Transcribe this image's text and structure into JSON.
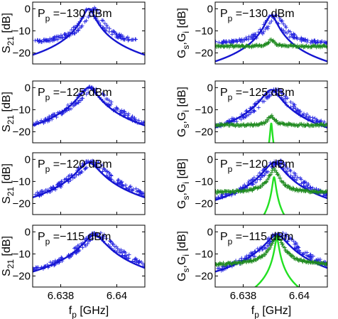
{
  "figure": {
    "left_ylabel": {
      "main": "S",
      "sub": "21",
      "unit": " [dB]"
    },
    "right_ylabel": {
      "main1": "G",
      "sub1": "s",
      "mid": ",G",
      "sub2": "i",
      "unit": " [dB]"
    },
    "xlabel": {
      "main": "f",
      "sub": "p",
      "unit": " [GHz]"
    }
  },
  "colors": {
    "data_blue": "#2020e0",
    "fit_blue": "#1515d0",
    "data_green": "#1f8a1f",
    "fit_green": "#22e022",
    "axis": "#000000"
  },
  "chart_data": [
    {
      "type": "scatter",
      "panel": "left",
      "annotation": {
        "base": "P",
        "sub": "p",
        "value": " =−130 dBm"
      },
      "xlim": [
        6.637,
        6.641
      ],
      "ylim": [
        -25,
        3
      ],
      "xticks": [
        6.638,
        6.64
      ],
      "xtick_labels": [
        "6.638",
        "6.64"
      ],
      "yticks": [
        0,
        -10,
        -20
      ],
      "ytick_labels": [
        "0",
        "−10",
        "−20"
      ],
      "series": [
        {
          "kind": "data",
          "marker": "+",
          "color": "blue",
          "center": 6.639,
          "peak": 0,
          "width": 0.00018,
          "background": -16,
          "noise": 0.6,
          "x_range": [
            6.637,
            6.6405
          ],
          "offset": [
            0.0002,
            0
          ]
        },
        {
          "kind": "fit",
          "color": "blue",
          "center": 6.639,
          "peak": 0,
          "width": 0.00018,
          "background": -40,
          "offset": [
            0,
            0
          ]
        }
      ]
    },
    {
      "type": "scatter",
      "panel": "right",
      "annotation": {
        "base": "P",
        "sub": "p",
        "value": " =−130 dBm"
      },
      "xlim": [
        6.637,
        6.641
      ],
      "ylim": [
        -25,
        3
      ],
      "xticks": [
        6.638,
        6.64
      ],
      "xtick_labels": [
        "6.638",
        "6.64"
      ],
      "yticks": [
        0,
        -10,
        -20
      ],
      "ytick_labels": [
        "0",
        "−10",
        "−20"
      ],
      "series": [
        {
          "kind": "data",
          "marker": "+",
          "color": "blue",
          "center": 6.639,
          "peak": -3,
          "width": 0.00018,
          "background": -16,
          "noise": 0.6,
          "x_range": [
            6.637,
            6.641
          ],
          "offset": [
            0.0002,
            0
          ]
        },
        {
          "kind": "fit",
          "color": "blue",
          "center": 6.639,
          "peak": -3,
          "width": 0.00018,
          "background": -40,
          "offset": [
            0,
            0
          ]
        },
        {
          "kind": "data",
          "marker": "+",
          "color": "green",
          "center": 6.639,
          "peak": -17,
          "width": 0.0001,
          "background": -17,
          "noise": 0.5,
          "x_range": [
            6.637,
            6.641
          ],
          "offset": [
            0,
            0
          ]
        }
      ]
    },
    {
      "type": "scatter",
      "panel": "left",
      "annotation": {
        "base": "P",
        "sub": "p",
        "value": " =−125 dBm"
      },
      "xlim": [
        6.637,
        6.641
      ],
      "ylim": [
        -25,
        3
      ],
      "xticks": [
        6.638,
        6.64
      ],
      "xtick_labels": [
        "6.638",
        "6.64"
      ],
      "yticks": [
        0,
        -10,
        -20
      ],
      "ytick_labels": [
        "0",
        "−10",
        "−20"
      ],
      "series": [
        {
          "kind": "data",
          "marker": "+",
          "color": "blue",
          "center": 6.639,
          "peak": 0,
          "width": 0.0003,
          "background": -40,
          "noise": 0.6,
          "x_range": [
            6.637,
            6.641
          ],
          "offset": [
            0.0002,
            0
          ]
        },
        {
          "kind": "fit",
          "color": "blue",
          "center": 6.639,
          "peak": 0,
          "width": 0.00028,
          "background": -40,
          "offset": [
            0,
            0
          ]
        }
      ]
    },
    {
      "type": "scatter",
      "panel": "right",
      "annotation": {
        "base": "P",
        "sub": "p",
        "value": " =−125 dBm"
      },
      "xlim": [
        6.637,
        6.641
      ],
      "ylim": [
        -25,
        3
      ],
      "xticks": [
        6.638,
        6.64
      ],
      "xtick_labels": [
        "6.638",
        "6.64"
      ],
      "yticks": [
        0,
        -10,
        -20
      ],
      "ytick_labels": [
        "0",
        "−10",
        "−20"
      ],
      "series": [
        {
          "kind": "data",
          "marker": "+",
          "color": "blue",
          "center": 6.639,
          "peak": -1,
          "width": 0.0003,
          "background": -40,
          "noise": 0.6,
          "x_range": [
            6.637,
            6.641
          ],
          "offset": [
            0.0002,
            0
          ]
        },
        {
          "kind": "fit",
          "color": "blue",
          "center": 6.639,
          "peak": -1,
          "width": 0.00028,
          "background": -40,
          "offset": [
            0,
            0
          ]
        },
        {
          "kind": "data",
          "marker": "+",
          "color": "green",
          "center": 6.639,
          "peak": -15,
          "width": 0.00012,
          "background": -17,
          "noise": 0.5,
          "x_range": [
            6.637,
            6.641
          ],
          "offset": [
            0,
            0
          ]
        },
        {
          "kind": "fit",
          "color": "green",
          "center": 6.639,
          "peak": -16,
          "width": 3e-05,
          "background": -40,
          "offset": [
            0,
            0
          ]
        }
      ]
    },
    {
      "type": "scatter",
      "panel": "left",
      "annotation": {
        "base": "P",
        "sub": "p",
        "value": " =−120 dBm"
      },
      "xlim": [
        6.637,
        6.641
      ],
      "ylim": [
        -25,
        3
      ],
      "xticks": [
        6.638,
        6.64
      ],
      "xtick_labels": [
        "6.638",
        "6.64"
      ],
      "yticks": [
        0,
        -10,
        -20
      ],
      "ytick_labels": [
        "0",
        "−10",
        "−20"
      ],
      "series": [
        {
          "kind": "data",
          "marker": "+",
          "color": "blue",
          "center": 6.639,
          "peak": -1,
          "width": 0.00035,
          "background": -40,
          "noise": 0.6,
          "x_range": [
            6.637,
            6.641
          ],
          "offset": [
            0.0002,
            0
          ]
        },
        {
          "kind": "fit",
          "color": "blue",
          "center": 6.639,
          "peak": -1.5,
          "width": 0.00033,
          "background": -40,
          "offset": [
            0,
            0
          ]
        }
      ]
    },
    {
      "type": "scatter",
      "panel": "right",
      "annotation": {
        "base": "P",
        "sub": "p",
        "value": " =−120 dBm"
      },
      "xlim": [
        6.637,
        6.641
      ],
      "ylim": [
        -25,
        3
      ],
      "xticks": [
        6.638,
        6.64
      ],
      "xtick_labels": [
        "6.638",
        "6.64"
      ],
      "yticks": [
        0,
        -10,
        -20
      ],
      "ytick_labels": [
        "0",
        "−10",
        "−20"
      ],
      "series": [
        {
          "kind": "data",
          "marker": "+",
          "color": "blue",
          "center": 6.6391,
          "peak": -1,
          "width": 0.00032,
          "background": -40,
          "noise": 0.6,
          "x_range": [
            6.637,
            6.641
          ],
          "offset": [
            0.0002,
            0
          ]
        },
        {
          "kind": "fit",
          "color": "blue",
          "center": 6.6391,
          "peak": -1.5,
          "width": 0.0003,
          "background": -40,
          "offset": [
            0,
            0
          ]
        },
        {
          "kind": "data",
          "marker": "+",
          "color": "green",
          "center": 6.6391,
          "peak": -5,
          "width": 0.00015,
          "background": -15,
          "noise": 0.5,
          "x_range": [
            6.637,
            6.641
          ],
          "offset": [
            0,
            0
          ]
        },
        {
          "kind": "fit",
          "color": "green",
          "center": 6.6391,
          "peak": -8,
          "width": 5e-05,
          "background": -40,
          "offset": [
            0,
            0
          ]
        }
      ]
    },
    {
      "type": "scatter",
      "panel": "left",
      "annotation": {
        "base": "P",
        "sub": "p",
        "value": " =−115 dBm"
      },
      "xlim": [
        6.637,
        6.641
      ],
      "ylim": [
        -25,
        3
      ],
      "xticks": [
        6.638,
        6.64
      ],
      "xtick_labels": [
        "6.638",
        "6.64"
      ],
      "yticks": [
        0,
        -10,
        -20
      ],
      "ytick_labels": [
        "0",
        "−10",
        "−20"
      ],
      "series": [
        {
          "kind": "data",
          "marker": "+",
          "color": "blue",
          "center": 6.6392,
          "peak": -1,
          "width": 0.00035,
          "background": -40,
          "noise": 0.6,
          "x_range": [
            6.637,
            6.641
          ],
          "offset": [
            0.0002,
            0
          ]
        },
        {
          "kind": "fit",
          "color": "blue",
          "center": 6.6392,
          "peak": -1.5,
          "width": 0.00033,
          "background": -40,
          "offset": [
            0,
            0
          ]
        }
      ]
    },
    {
      "type": "scatter",
      "panel": "right",
      "annotation": {
        "base": "P",
        "sub": "p",
        "value": " =−115 dBm"
      },
      "xlim": [
        6.637,
        6.641
      ],
      "ylim": [
        -25,
        3
      ],
      "xticks": [
        6.638,
        6.64
      ],
      "xtick_labels": [
        "6.638",
        "6.64"
      ],
      "yticks": [
        0,
        -10,
        -20
      ],
      "ytick_labels": [
        "0",
        "−10",
        "−20"
      ],
      "series": [
        {
          "kind": "data",
          "marker": "+",
          "color": "blue",
          "center": 6.6392,
          "peak": -1,
          "width": 0.00035,
          "background": -40,
          "noise": 0.6,
          "x_range": [
            6.637,
            6.641
          ],
          "offset": [
            0.0002,
            0
          ]
        },
        {
          "kind": "fit",
          "color": "blue",
          "center": 6.6392,
          "peak": -1.5,
          "width": 0.00033,
          "background": -40,
          "offset": [
            0,
            0
          ]
        },
        {
          "kind": "data",
          "marker": "+",
          "color": "green",
          "center": 6.6392,
          "peak": -2,
          "width": 0.00015,
          "background": -15,
          "noise": 0.5,
          "x_range": [
            6.637,
            6.641
          ],
          "offset": [
            0,
            0
          ]
        },
        {
          "kind": "fit",
          "color": "green",
          "center": 6.6392,
          "peak": -3,
          "width": 6e-05,
          "background": -40,
          "offset": [
            0,
            0
          ]
        }
      ]
    }
  ]
}
